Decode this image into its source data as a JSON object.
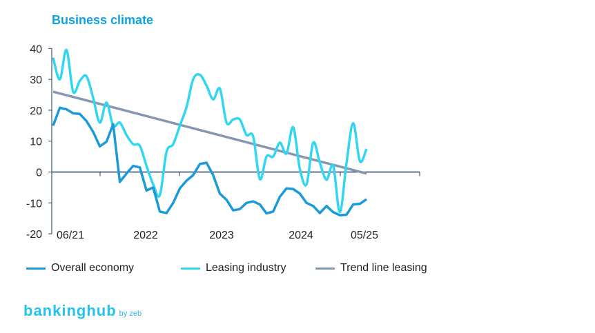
{
  "chart_data": {
    "type": "line",
    "title": "Business climate",
    "xlabel": "",
    "ylabel": "",
    "ylim": [
      -20,
      40
    ],
    "yticks": [
      40,
      30,
      20,
      10,
      0,
      -10,
      -20
    ],
    "x_range": [
      "06/21",
      "12/25"
    ],
    "x_tick_labels": [
      "06/21",
      "2022",
      "2023",
      "2024",
      "05/25"
    ],
    "grid": false,
    "legend_placement": "bottom",
    "x": [
      "06/21",
      "07/21",
      "08/21",
      "09/21",
      "10/21",
      "11/21",
      "12/21",
      "01/22",
      "02/22",
      "03/22",
      "04/22",
      "05/22",
      "06/22",
      "07/22",
      "08/22",
      "09/22",
      "10/22",
      "11/22",
      "12/22",
      "01/23",
      "02/23",
      "03/23",
      "04/23",
      "05/23",
      "06/23",
      "07/23",
      "08/23",
      "09/23",
      "10/23",
      "11/23",
      "12/23",
      "01/24",
      "02/24",
      "03/24",
      "04/24",
      "05/24",
      "06/24",
      "07/24",
      "08/24",
      "09/24",
      "10/24",
      "11/24",
      "12/24",
      "01/25",
      "02/25",
      "03/25",
      "04/25",
      "05/25"
    ],
    "series": [
      {
        "name": "Overall economy",
        "color": "#1a9ad6",
        "values": [
          15,
          20.8,
          20.3,
          19,
          18.8,
          16.5,
          13,
          8.3,
          9.8,
          15.5,
          -3.2,
          -0.5,
          2,
          1.5,
          -6,
          -5,
          -12.8,
          -13.3,
          -10,
          -5.3,
          -2.8,
          -1,
          2.6,
          3,
          -1,
          -7,
          -9,
          -12.4,
          -12,
          -10,
          -9.5,
          -10.5,
          -13.4,
          -12.8,
          -8,
          -5.3,
          -5.5,
          -7,
          -10,
          -11,
          -13.3,
          -11,
          -13,
          -14,
          -13.8,
          -10.5,
          -10.3,
          -8.8
        ]
      },
      {
        "name": "Leasing industry",
        "color": "#33d6f0",
        "values": [
          37,
          30,
          39.5,
          26,
          29.5,
          31,
          24,
          16,
          22.5,
          15,
          16,
          12,
          9,
          8.5,
          2,
          -4,
          -7.5,
          6.5,
          9,
          15,
          21,
          30,
          31.5,
          28,
          23.5,
          27,
          16,
          17,
          17,
          12,
          11.5,
          -2.3,
          5,
          5,
          9.5,
          6,
          14.5,
          1,
          -4,
          9.5,
          3,
          -2.5,
          2,
          -13,
          3,
          15.8,
          3.5,
          7.5
        ]
      },
      {
        "name": "Trend line leasing",
        "color": "#8499b1",
        "values_endpoints": {
          "06/21": 26,
          "05/25": -0.5
        }
      }
    ]
  },
  "branding": {
    "logo_text": "bankinghub",
    "logo_sub": "by zeb"
  }
}
